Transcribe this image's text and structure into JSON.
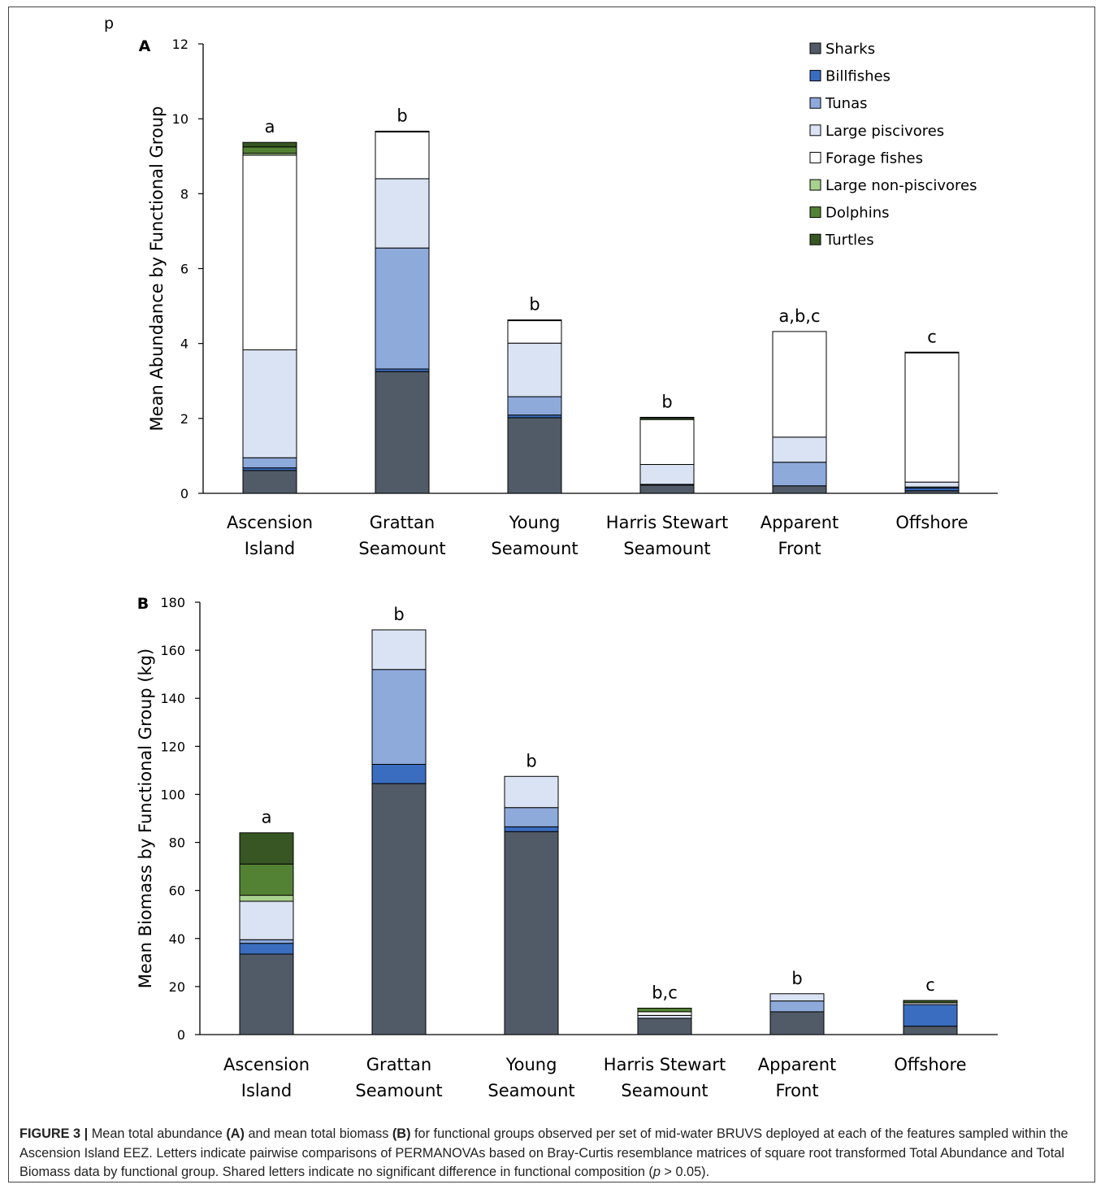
{
  "stray_letter": "p",
  "groups": [
    {
      "name": "Sharks",
      "color": "#515b67"
    },
    {
      "name": "Billfishes",
      "color": "#3a6dbf"
    },
    {
      "name": "Tunas",
      "color": "#8eaadb"
    },
    {
      "name": "Large piscivores",
      "color": "#dae3f3"
    },
    {
      "name": "Forage fishes",
      "color": "#ffffff"
    },
    {
      "name": "Large non-piscivores",
      "color": "#a9d18e"
    },
    {
      "name": "Dolphins",
      "color": "#548235"
    },
    {
      "name": "Turtles",
      "color": "#375623"
    }
  ],
  "chart_data": [
    {
      "type": "bar",
      "stacked": true,
      "panel": "A",
      "ylabel": "Mean Abundance by Functional Group",
      "ylim": [
        0,
        12
      ],
      "yticks": [
        0,
        2,
        4,
        6,
        8,
        10,
        12
      ],
      "legend": "top-right",
      "categories": [
        [
          "Ascension",
          "Island"
        ],
        [
          "Grattan",
          "Seamount"
        ],
        [
          "Young",
          "Seamount"
        ],
        [
          "Harris Stewart",
          "Seamount"
        ],
        [
          "Apparent",
          "Front"
        ],
        [
          "Offshore"
        ]
      ],
      "letters": [
        "a",
        "b",
        "b",
        "b",
        "a,b,c",
        "c"
      ],
      "series": [
        {
          "name": "Sharks",
          "values": [
            0.61,
            3.25,
            2.02,
            0.22,
            0.2,
            0.07
          ]
        },
        {
          "name": "Billfishes",
          "values": [
            0.07,
            0.07,
            0.07,
            0.02,
            0.0,
            0.07
          ]
        },
        {
          "name": "Tunas",
          "values": [
            0.27,
            3.23,
            0.49,
            0.0,
            0.63,
            0.03
          ]
        },
        {
          "name": "Large piscivores",
          "values": [
            2.88,
            1.85,
            1.43,
            0.53,
            0.67,
            0.13
          ]
        },
        {
          "name": "Forage fishes",
          "values": [
            5.2,
            1.25,
            0.6,
            1.2,
            2.82,
            3.45
          ]
        },
        {
          "name": "Large non-piscivores",
          "values": [
            0.05,
            0.0,
            0.0,
            0.0,
            0.0,
            0.0
          ]
        },
        {
          "name": "Dolphins",
          "values": [
            0.17,
            0.0,
            0.0,
            0.04,
            0.0,
            0.0
          ]
        },
        {
          "name": "Turtles",
          "values": [
            0.12,
            0.02,
            0.02,
            0.02,
            0.0,
            0.02
          ]
        }
      ]
    },
    {
      "type": "bar",
      "stacked": true,
      "panel": "B",
      "ylabel": "Mean Biomass by Functional Group (kg)",
      "ylim": [
        0,
        180
      ],
      "yticks": [
        0,
        20,
        40,
        60,
        80,
        100,
        120,
        140,
        160,
        180
      ],
      "categories": [
        [
          "Ascension",
          "Island"
        ],
        [
          "Grattan",
          "Seamount"
        ],
        [
          "Young",
          "Seamount"
        ],
        [
          "Harris Stewart",
          "Seamount"
        ],
        [
          "Apparent",
          "Front"
        ],
        [
          "Offshore"
        ]
      ],
      "letters": [
        "a",
        "b",
        "b",
        "b,c",
        "b",
        "c"
      ],
      "series": [
        {
          "name": "Sharks",
          "values": [
            33.5,
            104.5,
            84.5,
            6.8,
            9.5,
            3.5
          ]
        },
        {
          "name": "Billfishes",
          "values": [
            4.5,
            8.0,
            2.0,
            0.0,
            0.0,
            9.0
          ]
        },
        {
          "name": "Tunas",
          "values": [
            1.5,
            39.5,
            8.0,
            0.0,
            4.5,
            0.0
          ]
        },
        {
          "name": "Large piscivores",
          "values": [
            16.0,
            16.5,
            13.0,
            1.2,
            3.0,
            0.0
          ]
        },
        {
          "name": "Forage fishes",
          "values": [
            0.0,
            0.0,
            0.0,
            1.5,
            0.0,
            0.7
          ]
        },
        {
          "name": "Large non-piscivores",
          "values": [
            2.5,
            0.0,
            0.0,
            0.0,
            0.0,
            0.0
          ]
        },
        {
          "name": "Dolphins",
          "values": [
            13.0,
            0.0,
            0.0,
            1.5,
            0.0,
            0.0
          ]
        },
        {
          "name": "Turtles",
          "values": [
            13.0,
            0.0,
            0.0,
            0.0,
            0.0,
            1.0
          ]
        }
      ]
    }
  ],
  "caption": {
    "label": "FIGURE 3 |",
    "t1": " Mean total abundance ",
    "a": "(A)",
    "t2": " and mean total biomass ",
    "b": "(B)",
    "t3": " for functional groups observed per set of mid-water BRUVS deployed at each of the features sampled within the Ascension Island EEZ. Letters indicate pairwise comparisons of PERMANOVAs based on Bray-Curtis resemblance matrices of square root transformed Total Abundance and Total Biomass data by functional group. Shared letters indicate no significant difference in functional composition (",
    "p": "p",
    "t4": " > 0.05)."
  }
}
